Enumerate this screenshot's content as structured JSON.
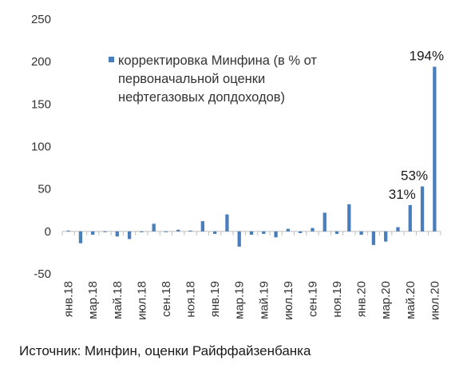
{
  "chart_data": {
    "type": "bar",
    "x": [
      "янв.18",
      "фев.18",
      "мар.18",
      "апр.18",
      "май.18",
      "июн.18",
      "июл.18",
      "авг.18",
      "сен.18",
      "окт.18",
      "ноя.18",
      "дек.18",
      "янв.19",
      "фев.19",
      "мар.19",
      "апр.19",
      "май.19",
      "июн.19",
      "июл.19",
      "авг.19",
      "сен.19",
      "окт.19",
      "ноя.19",
      "дек.19",
      "янв.20",
      "фев.20",
      "мар.20",
      "апр.20",
      "май.20",
      "июн.20",
      "июл.20"
    ],
    "tick_labels": [
      "янв.18",
      "мар.18",
      "май.18",
      "июл.18",
      "сен.18",
      "ноя.18",
      "янв.19",
      "мар.19",
      "май.19",
      "июл.19",
      "сен.19",
      "ноя.19",
      "янв.20",
      "мар.20",
      "май.20",
      "июл.20"
    ],
    "series": [
      {
        "name": "корректировка Минфина (в % от первоначальной оценки нефтегазовых допдоходов)",
        "color": "#4a7ebb",
        "values": [
          1,
          -14,
          -4,
          0,
          -6,
          -9,
          -1,
          9,
          0,
          2,
          1,
          12,
          -3,
          20,
          -18,
          -4,
          -3,
          -7,
          3,
          -2,
          4,
          22,
          -3,
          32,
          -4,
          -16,
          -12,
          5,
          31,
          53,
          194
        ]
      }
    ],
    "legend_lines": [
      "корректировка Минфина (в % от",
      "первоначальной оценки",
      "нефтегазовых допдоходов)"
    ],
    "legend_position": "top-center",
    "annotations": [
      {
        "index": 28,
        "text": "31%"
      },
      {
        "index": 29,
        "text": "53%"
      },
      {
        "index": 30,
        "text": "194%"
      }
    ],
    "yticks": [
      -50,
      0,
      50,
      100,
      150,
      200,
      250
    ],
    "ylim": [
      -50,
      250
    ],
    "grid": false
  },
  "source": "Источник: Минфин, оценки Райффайзенбанка"
}
